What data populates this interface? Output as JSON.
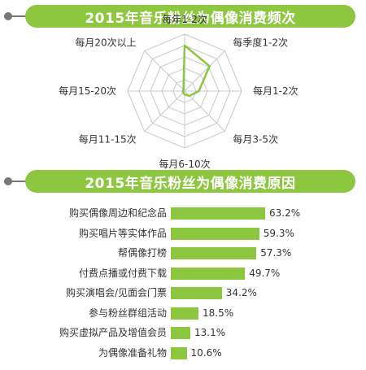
{
  "chart_data": [
    {
      "type": "radar",
      "title": "2015年音乐粉丝为偶像消费频次",
      "axes": [
        "每年1-2次",
        "每季度1-2次",
        "每月1-2次",
        "每月3-5次",
        "每月6-10次",
        "每月11-15次",
        "每月15-20次",
        "每月20次以上"
      ],
      "values": [
        0.8,
        0.62,
        0.25,
        0.12,
        0.06,
        0.04,
        0.03,
        0.03
      ],
      "rlim": [
        0,
        1
      ],
      "rings": 5,
      "colors": {
        "series": "#8dc63f",
        "grid": "#c8c8c8"
      }
    },
    {
      "type": "bar",
      "orientation": "horizontal",
      "title": "2015年音乐粉丝为偶像消费原因",
      "categories": [
        "购买偶像周边和纪念品",
        "购买唱片等实体作品",
        "帮偶像打榜",
        "付费点播或付费下载",
        "购买演唱会/见面会门票",
        "参与粉丝群组活动",
        "购买虚拟产品及增值会员",
        "为偶像准备礼物"
      ],
      "values": [
        63.2,
        59.3,
        57.3,
        49.7,
        34.2,
        18.5,
        13.1,
        10.6
      ],
      "value_labels": [
        "63.2%",
        "59.3%",
        "57.3%",
        "49.7%",
        "34.2%",
        "18.5%",
        "13.1%",
        "10.6%"
      ],
      "unit": "%",
      "xlim": [
        0,
        63.2
      ],
      "colors": {
        "bar": "#8dc63f"
      }
    }
  ]
}
